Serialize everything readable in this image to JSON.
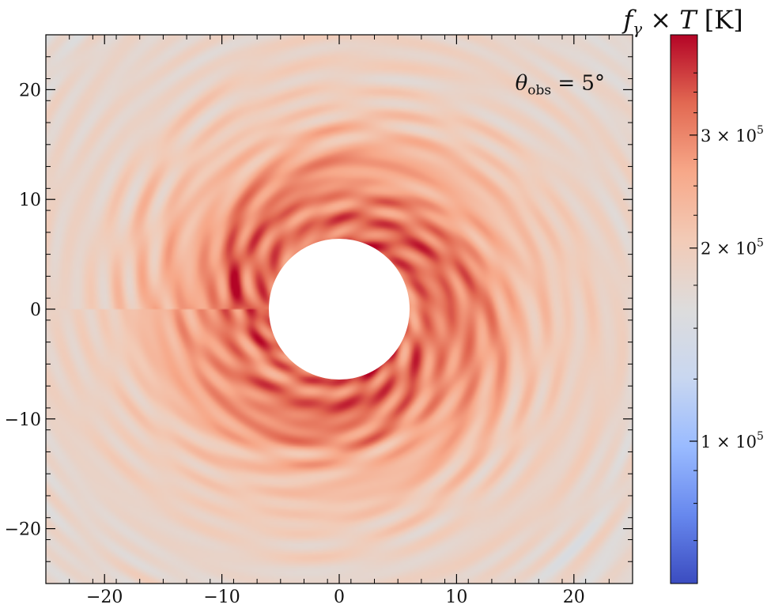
{
  "chart_data": {
    "type": "heatmap",
    "title": "",
    "xlabel": "",
    "ylabel": "",
    "xlim": [
      -25,
      25
    ],
    "ylim": [
      -25,
      25
    ],
    "x_ticks": [
      -20,
      -10,
      0,
      10,
      20
    ],
    "y_ticks": [
      -20,
      -10,
      0,
      10,
      20
    ],
    "x_tick_labels": [
      "−20",
      "−10",
      "0",
      "10",
      "20"
    ],
    "y_tick_labels": [
      "−20",
      "−10",
      "0",
      "10",
      "20"
    ],
    "inner_hole_radius": 6,
    "annotation": {
      "symbol": "θ",
      "subscript": "obs",
      "rest": " = 5°",
      "x": 15,
      "y": 20
    },
    "colorbar": {
      "label_f": "f",
      "label_sub": "γ",
      "label_rest": " × ",
      "label_T": "T",
      "label_unit": " [K]",
      "scale": "log",
      "vmin": 60000,
      "vmax": 430000,
      "ticks": [
        {
          "value": 100000,
          "mantissa": "1 × 10",
          "exp": "5"
        },
        {
          "value": 200000,
          "mantissa": "2 × 10",
          "exp": "5"
        },
        {
          "value": 300000,
          "mantissa": "3 × 10",
          "exp": "5"
        }
      ],
      "colormap": "coolwarm",
      "stops": [
        "#3b4cc0",
        "#6788ee",
        "#9abbff",
        "#c9d7f0",
        "#dddcdc",
        "#f2cbb7",
        "#f7a889",
        "#e26952",
        "#b40426"
      ]
    },
    "field": {
      "description_values_K": "temperature-weighted field, spiral pattern",
      "background_value": 165000,
      "ring_peak_value": 360000,
      "ring_peak_radius": 8,
      "spiral_arms": 3
    }
  }
}
